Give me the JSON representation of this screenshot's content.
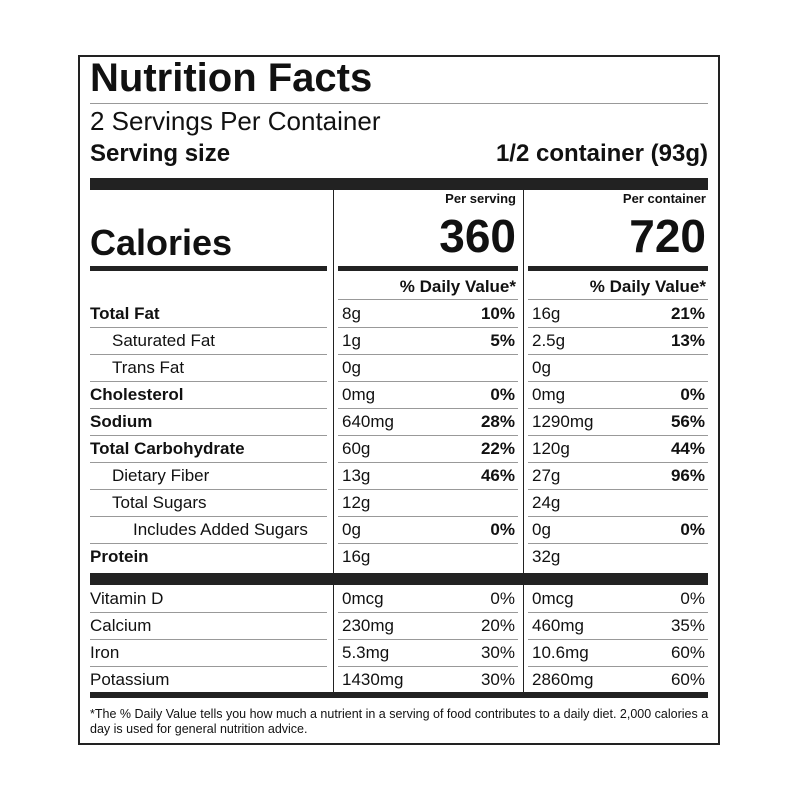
{
  "title": "Nutrition Facts",
  "servings": "2 Servings Per Container",
  "serving_size": {
    "label": "Serving size",
    "value": "1/2 container (93g)"
  },
  "calories": {
    "label": "Calories",
    "columns": [
      {
        "header": "Per serving",
        "value": "360"
      },
      {
        "header": "Per container",
        "value": "720"
      }
    ]
  },
  "dv_header": "% Daily Value*",
  "nutrients": [
    {
      "name": "Total Fat",
      "level": 0,
      "per_serving": {
        "amount": "8g",
        "dv": "10%"
      },
      "per_container": {
        "amount": "16g",
        "dv": "21%"
      }
    },
    {
      "name": "Saturated Fat",
      "level": 1,
      "per_serving": {
        "amount": "1g",
        "dv": "5%"
      },
      "per_container": {
        "amount": "2.5g",
        "dv": "13%"
      }
    },
    {
      "name": "Trans Fat",
      "level": 1,
      "per_serving": {
        "amount": "0g",
        "dv": null
      },
      "per_container": {
        "amount": "0g",
        "dv": null
      }
    },
    {
      "name": "Cholesterol",
      "level": 0,
      "per_serving": {
        "amount": "0mg",
        "dv": "0%"
      },
      "per_container": {
        "amount": "0mg",
        "dv": "0%"
      }
    },
    {
      "name": "Sodium",
      "level": 0,
      "per_serving": {
        "amount": "640mg",
        "dv": "28%"
      },
      "per_container": {
        "amount": "1290mg",
        "dv": "56%"
      }
    },
    {
      "name": "Total Carbohydrate",
      "level": 0,
      "per_serving": {
        "amount": "60g",
        "dv": "22%"
      },
      "per_container": {
        "amount": "120g",
        "dv": "44%"
      }
    },
    {
      "name": "Dietary Fiber",
      "level": 1,
      "per_serving": {
        "amount": "13g",
        "dv": "46%"
      },
      "per_container": {
        "amount": "27g",
        "dv": "96%"
      }
    },
    {
      "name": "Total Sugars",
      "level": 1,
      "per_serving": {
        "amount": "12g",
        "dv": null
      },
      "per_container": {
        "amount": "24g",
        "dv": null
      }
    },
    {
      "name": "Includes Added Sugars",
      "level": 2,
      "per_serving": {
        "amount": "0g",
        "dv": "0%"
      },
      "per_container": {
        "amount": "0g",
        "dv": "0%"
      }
    },
    {
      "name": "Protein",
      "level": 0,
      "per_serving": {
        "amount": "16g",
        "dv": null
      },
      "per_container": {
        "amount": "32g",
        "dv": null
      }
    }
  ],
  "vitamins": [
    {
      "name": "Vitamin D",
      "per_serving": {
        "amount": "0mcg",
        "dv": "0%"
      },
      "per_container": {
        "amount": "0mcg",
        "dv": "0%"
      }
    },
    {
      "name": "Calcium",
      "per_serving": {
        "amount": "230mg",
        "dv": "20%"
      },
      "per_container": {
        "amount": "460mg",
        "dv": "35%"
      }
    },
    {
      "name": "Iron",
      "per_serving": {
        "amount": "5.3mg",
        "dv": "30%"
      },
      "per_container": {
        "amount": "10.6mg",
        "dv": "60%"
      }
    },
    {
      "name": "Potassium",
      "per_serving": {
        "amount": "1430mg",
        "dv": "30%"
      },
      "per_container": {
        "amount": "2860mg",
        "dv": "60%"
      }
    }
  ],
  "footnote": "*The % Daily Value tells you how much a nutrient in a serving of food contributes to a daily diet. 2,000 calories a day is used for general nutrition advice."
}
